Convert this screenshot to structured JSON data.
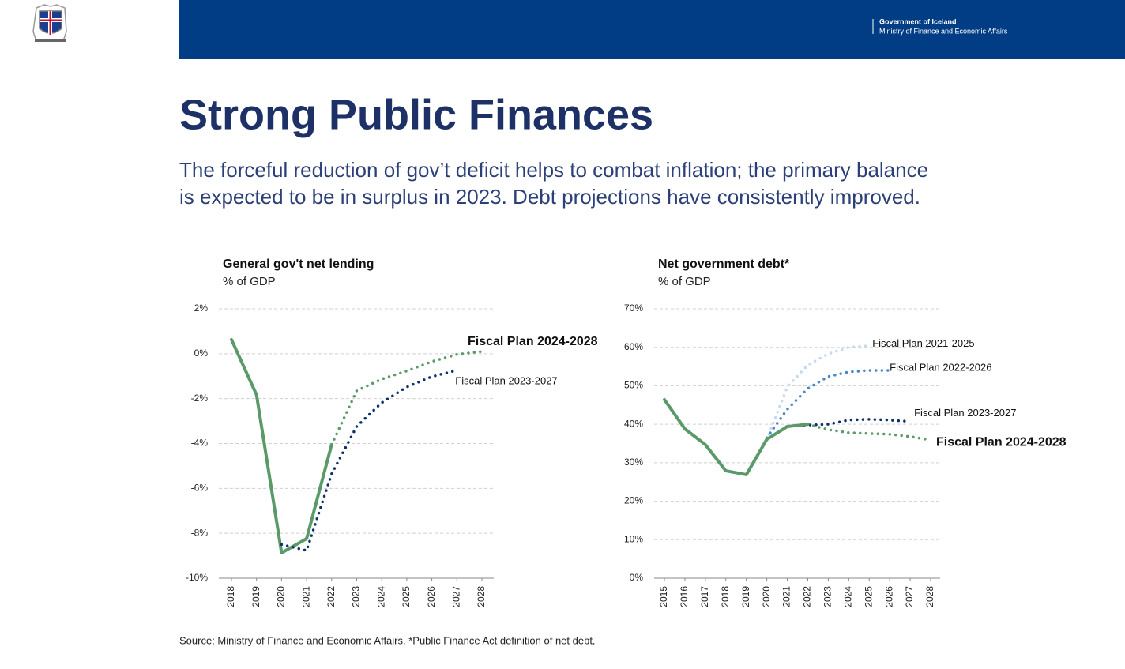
{
  "header": {
    "org": "Government of Iceland",
    "ministry": "Ministry of Finance and Economic Affairs"
  },
  "title": "Strong Public Finances",
  "subtitle": [
    "The forceful reduction of gov’t deficit helps to combat inflation; the primary balance",
    "is expected to be in surplus in 2023. Debt projections have consistently improved."
  ],
  "source": "Source: Ministry of Finance and Economic Affairs. *Public Finance Act definition of net debt.",
  "chart_data": [
    {
      "type": "line",
      "title": "General gov't net lending",
      "subtitle": "% of GDP",
      "x": [
        2018,
        2019,
        2020,
        2021,
        2022,
        2023,
        2024,
        2025,
        2026,
        2027,
        2028
      ],
      "xlim": [
        2018,
        2028
      ],
      "xticks": [
        2018,
        2019,
        2020,
        2021,
        2022,
        2023,
        2024,
        2025,
        2026,
        2027,
        2028
      ],
      "ylim": [
        -10,
        2
      ],
      "yticks": [
        {
          "value": -10,
          "label": "-10%"
        },
        {
          "value": -8,
          "label": "-8%"
        },
        {
          "value": -6,
          "label": "-6%"
        },
        {
          "value": -4,
          "label": "-4%"
        },
        {
          "value": -2,
          "label": "-2%"
        },
        {
          "value": 0,
          "label": "0%"
        },
        {
          "value": 2,
          "label": "2%"
        }
      ],
      "grid": true,
      "series": [
        {
          "color": "#5a9a68",
          "style": "solid",
          "values": [
            0.63,
            -1.83,
            -8.87,
            -8.24,
            -4.05,
            null,
            null,
            null,
            null,
            null,
            null
          ]
        },
        {
          "name": "Fiscal Plan 2024-2028",
          "color": "#5a9a68",
          "style": "dotted",
          "emphasis": true,
          "values": [
            null,
            null,
            null,
            null,
            -4.05,
            -1.65,
            -1.13,
            -0.77,
            -0.35,
            -0.03,
            0.1
          ]
        },
        {
          "name": "Fiscal Plan 2023-2027",
          "color": "#0d2f6b",
          "style": "dotted",
          "values": [
            null,
            null,
            -8.5,
            -8.77,
            -5.35,
            -3.24,
            -2.18,
            -1.48,
            -1.02,
            -0.74,
            null
          ]
        }
      ]
    },
    {
      "type": "line",
      "title": "Net government debt*",
      "subtitle": "% of GDP",
      "x": [
        2015,
        2016,
        2017,
        2018,
        2019,
        2020,
        2021,
        2022,
        2023,
        2024,
        2025,
        2026,
        2027,
        2028
      ],
      "xlim": [
        2015,
        2028
      ],
      "xticks": [
        2015,
        2016,
        2017,
        2018,
        2019,
        2020,
        2021,
        2022,
        2023,
        2024,
        2025,
        2026,
        2027,
        2028
      ],
      "ylim": [
        0,
        70
      ],
      "yticks": [
        {
          "value": 0,
          "label": "0%"
        },
        {
          "value": 10,
          "label": "10%"
        },
        {
          "value": 20,
          "label": "20%"
        },
        {
          "value": 30,
          "label": "30%"
        },
        {
          "value": 40,
          "label": "40%"
        },
        {
          "value": 50,
          "label": "50%"
        },
        {
          "value": 60,
          "label": "60%"
        },
        {
          "value": 70,
          "label": "70%"
        }
      ],
      "grid": true,
      "series": [
        {
          "name": "Fiscal Plan 2021-2025",
          "color": "#c5d9ef",
          "style": "dotted",
          "values": [
            null,
            null,
            null,
            null,
            null,
            36.0,
            49.7,
            55.4,
            58.3,
            60.0,
            60.4,
            null,
            null,
            null
          ]
        },
        {
          "name": "Fiscal Plan 2022-2026",
          "color": "#4a86c5",
          "style": "dotted",
          "values": [
            null,
            null,
            null,
            null,
            null,
            36.5,
            43.9,
            49.3,
            52.4,
            53.6,
            54.0,
            54.0,
            null,
            null
          ]
        },
        {
          "name": "Fiscal Plan 2023-2027",
          "color": "#0d2f6b",
          "style": "dotted",
          "values": [
            null,
            null,
            null,
            null,
            null,
            36.0,
            39.5,
            39.8,
            40.0,
            41.1,
            41.3,
            41.1,
            40.7,
            null
          ]
        },
        {
          "name": "Fiscal Plan 2024-2028",
          "color": "#5a9a68",
          "style": "dotted",
          "emphasis": true,
          "values": [
            null,
            null,
            null,
            null,
            null,
            null,
            null,
            40.0,
            38.6,
            37.8,
            37.6,
            37.4,
            36.8,
            35.9
          ]
        },
        {
          "color": "#5a9a68",
          "style": "solid",
          "values": [
            46.4,
            38.8,
            34.7,
            27.9,
            26.9,
            36.1,
            39.4,
            40.0,
            null,
            null,
            null,
            null,
            null,
            null
          ]
        }
      ]
    }
  ]
}
